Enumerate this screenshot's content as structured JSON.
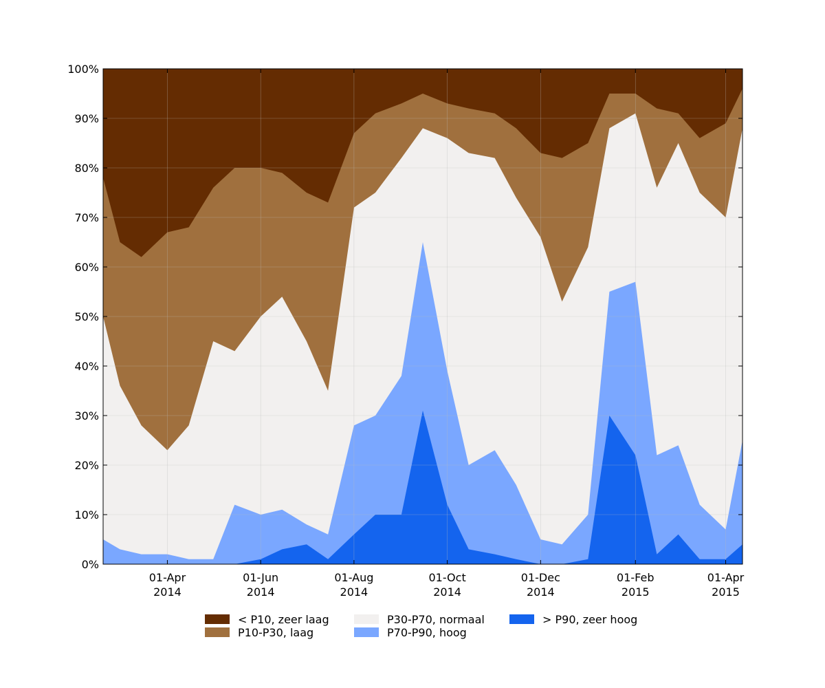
{
  "chart_data": {
    "type": "area",
    "stacked": true,
    "percent": true,
    "x_range": [
      "2014-02-18",
      "2015-04-12"
    ],
    "ylim": [
      0,
      100
    ],
    "grid": true,
    "legend_placement": "bottom",
    "y_ticks": [
      "0%",
      "10%",
      "20%",
      "30%",
      "40%",
      "50%",
      "60%",
      "70%",
      "80%",
      "90%",
      "100%"
    ],
    "x_ticks": [
      {
        "date": "2014-04-01",
        "line1": "01-Apr",
        "line2": "2014"
      },
      {
        "date": "2014-06-01",
        "line1": "01-Jun",
        "line2": "2014"
      },
      {
        "date": "2014-08-01",
        "line1": "01-Aug",
        "line2": "2014"
      },
      {
        "date": "2014-10-01",
        "line1": "01-Oct",
        "line2": "2014"
      },
      {
        "date": "2014-12-01",
        "line1": "01-Dec",
        "line2": "2014"
      },
      {
        "date": "2015-02-01",
        "line1": "01-Feb",
        "line2": "2015"
      },
      {
        "date": "2015-04-01",
        "line1": "01-Apr",
        "line2": "2015"
      }
    ],
    "x": [
      "2014-02-18",
      "2014-03-01",
      "2014-03-15",
      "2014-04-01",
      "2014-04-15",
      "2014-05-01",
      "2014-05-15",
      "2014-06-01",
      "2014-06-15",
      "2014-07-01",
      "2014-07-15",
      "2014-08-01",
      "2014-08-15",
      "2014-09-01",
      "2014-09-15",
      "2014-10-01",
      "2014-10-15",
      "2014-11-01",
      "2014-11-15",
      "2014-12-01",
      "2014-12-15",
      "2015-01-01",
      "2015-01-15",
      "2015-02-01",
      "2015-02-15",
      "2015-03-01",
      "2015-03-15",
      "2015-04-01",
      "2015-04-12"
    ],
    "series": [
      {
        "name": "> P90, zeer hoog",
        "color": "#1464ee",
        "cumulative": [
          0,
          0,
          0,
          0,
          0,
          0,
          0,
          1,
          3,
          4,
          1,
          6,
          10,
          10,
          31,
          12,
          3,
          2,
          1,
          0,
          0,
          1,
          30,
          22,
          2,
          6,
          1,
          1,
          4
        ]
      },
      {
        "name": "P70-P90, hoog",
        "color": "#7aa7ff",
        "cumulative": [
          5,
          3,
          2,
          2,
          1,
          1,
          12,
          10,
          11,
          8,
          6,
          28,
          30,
          38,
          65,
          39,
          20,
          23,
          16,
          5,
          4,
          10,
          55,
          57,
          22,
          24,
          12,
          7,
          25
        ]
      },
      {
        "name": "P30-P70, normaal",
        "color": "#f2f0ef",
        "cumulative": [
          50,
          36,
          28,
          23,
          28,
          45,
          43,
          50,
          54,
          45,
          35,
          72,
          75,
          82,
          88,
          86,
          83,
          82,
          74,
          66,
          53,
          64,
          88,
          91,
          76,
          85,
          75,
          70,
          88
        ]
      },
      {
        "name": "P10-P30, laag",
        "color": "#a0703e",
        "cumulative": [
          78,
          65,
          62,
          67,
          68,
          76,
          80,
          80,
          79,
          75,
          73,
          87,
          91,
          93,
          95,
          93,
          92,
          91,
          88,
          83,
          82,
          85,
          95,
          95,
          92,
          91,
          86,
          89,
          96
        ]
      },
      {
        "name": "< P10, zeer laag",
        "color": "#642c02",
        "cumulative": [
          100,
          100,
          100,
          100,
          100,
          100,
          100,
          100,
          100,
          100,
          100,
          100,
          100,
          100,
          100,
          100,
          100,
          100,
          100,
          100,
          100,
          100,
          100,
          100,
          100,
          100,
          100,
          100,
          100
        ]
      }
    ]
  },
  "legend": {
    "items": [
      {
        "label": "< P10, zeer laag",
        "color": "#642c02"
      },
      {
        "label": "P10-P30, laag",
        "color": "#a0703e"
      },
      {
        "label": "P30-P70, normaal",
        "color": "#f2f0ef"
      },
      {
        "label": "P70-P90, hoog",
        "color": "#7aa7ff"
      },
      {
        "label": "> P90, zeer hoog",
        "color": "#1464ee"
      }
    ]
  }
}
